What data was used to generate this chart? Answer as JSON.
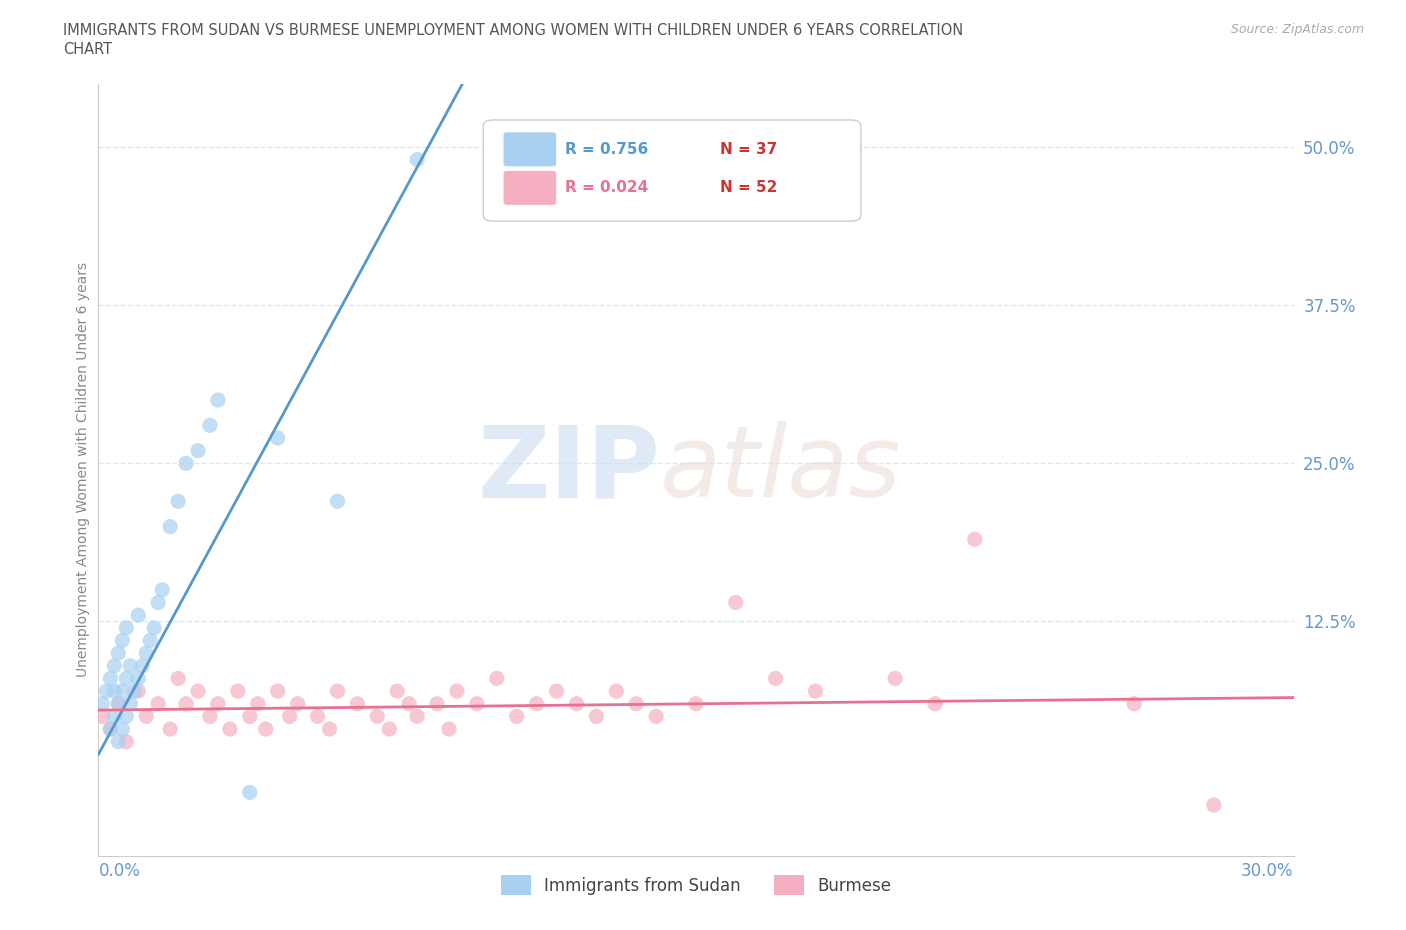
{
  "title_line1": "IMMIGRANTS FROM SUDAN VS BURMESE UNEMPLOYMENT AMONG WOMEN WITH CHILDREN UNDER 6 YEARS CORRELATION",
  "title_line2": "CHART",
  "source": "Source: ZipAtlas.com",
  "ylabel": "Unemployment Among Women with Children Under 6 years",
  "legend_r1": "R = 0.756",
  "legend_n1": "N = 37",
  "legend_r2": "R = 0.024",
  "legend_n2": "N = 52",
  "sudan_color": "#a8d0f0",
  "burmese_color": "#f4b0c0",
  "sudan_line_color": "#5599cc",
  "burmese_line_color": "#e87090",
  "xlim": [
    0.0,
    0.3
  ],
  "ylim": [
    -0.06,
    0.55
  ],
  "ytick_vals": [
    0.0,
    0.125,
    0.25,
    0.375,
    0.5
  ],
  "ytick_labels": [
    "",
    "12.5%",
    "25.0%",
    "37.5%",
    "50.0%"
  ],
  "background_color": "#ffffff",
  "grid_color": "#dde8f0",
  "title_color": "#555555",
  "tick_label_color": "#6699cc",
  "sudan_scatter_x": [
    0.001,
    0.002,
    0.003,
    0.003,
    0.004,
    0.004,
    0.004,
    0.005,
    0.005,
    0.005,
    0.006,
    0.006,
    0.006,
    0.007,
    0.007,
    0.007,
    0.008,
    0.008,
    0.009,
    0.01,
    0.01,
    0.011,
    0.012,
    0.013,
    0.014,
    0.015,
    0.016,
    0.018,
    0.02,
    0.022,
    0.025,
    0.028,
    0.03,
    0.038,
    0.045,
    0.06,
    0.08
  ],
  "sudan_scatter_y": [
    0.06,
    0.07,
    0.04,
    0.08,
    0.05,
    0.07,
    0.09,
    0.03,
    0.06,
    0.1,
    0.04,
    0.07,
    0.11,
    0.05,
    0.08,
    0.12,
    0.06,
    0.09,
    0.07,
    0.08,
    0.13,
    0.09,
    0.1,
    0.11,
    0.12,
    0.14,
    0.15,
    0.2,
    0.22,
    0.25,
    0.26,
    0.28,
    0.3,
    -0.01,
    0.27,
    0.22,
    0.49
  ],
  "burmese_scatter_x": [
    0.001,
    0.003,
    0.005,
    0.007,
    0.01,
    0.012,
    0.015,
    0.018,
    0.02,
    0.022,
    0.025,
    0.028,
    0.03,
    0.033,
    0.035,
    0.038,
    0.04,
    0.042,
    0.045,
    0.048,
    0.05,
    0.055,
    0.058,
    0.06,
    0.065,
    0.07,
    0.073,
    0.075,
    0.078,
    0.08,
    0.085,
    0.088,
    0.09,
    0.095,
    0.1,
    0.105,
    0.11,
    0.115,
    0.12,
    0.125,
    0.13,
    0.135,
    0.14,
    0.15,
    0.16,
    0.17,
    0.18,
    0.2,
    0.21,
    0.22,
    0.26,
    0.28
  ],
  "burmese_scatter_y": [
    0.05,
    0.04,
    0.06,
    0.03,
    0.07,
    0.05,
    0.06,
    0.04,
    0.08,
    0.06,
    0.07,
    0.05,
    0.06,
    0.04,
    0.07,
    0.05,
    0.06,
    0.04,
    0.07,
    0.05,
    0.06,
    0.05,
    0.04,
    0.07,
    0.06,
    0.05,
    0.04,
    0.07,
    0.06,
    0.05,
    0.06,
    0.04,
    0.07,
    0.06,
    0.08,
    0.05,
    0.06,
    0.07,
    0.06,
    0.05,
    0.07,
    0.06,
    0.05,
    0.06,
    0.14,
    0.08,
    0.07,
    0.08,
    0.06,
    0.19,
    0.06,
    -0.02
  ]
}
